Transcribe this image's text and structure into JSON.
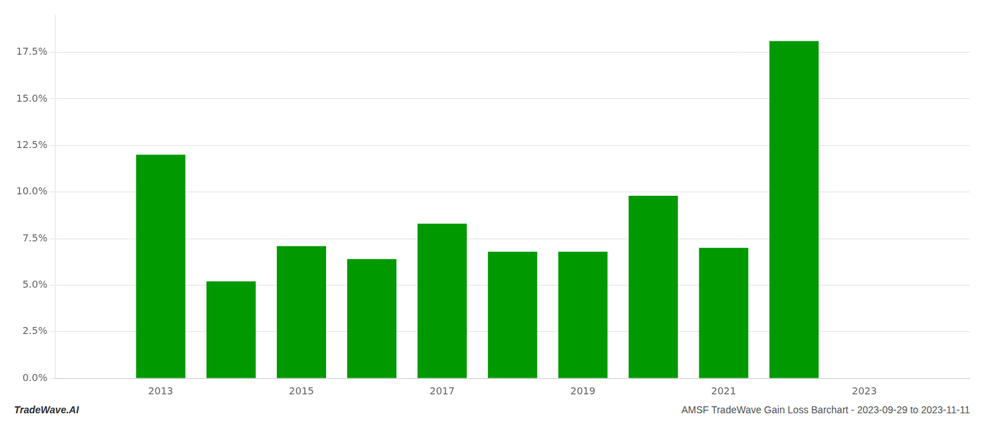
{
  "chart_data": {
    "type": "bar",
    "x": [
      2013,
      2014,
      2015,
      2016,
      2017,
      2018,
      2019,
      2020,
      2021,
      2022
    ],
    "values": [
      0.12,
      0.052,
      0.071,
      0.064,
      0.083,
      0.068,
      0.068,
      0.098,
      0.07,
      0.181
    ],
    "color": "#009900",
    "xlim": [
      2011.5,
      2024.5
    ],
    "xticks": [
      2013,
      2015,
      2017,
      2019,
      2021,
      2023
    ],
    "ylim": [
      0,
      0.195
    ],
    "yticks": [
      {
        "value": 0.0,
        "label": "0.0%"
      },
      {
        "value": 0.025,
        "label": "2.5%"
      },
      {
        "value": 0.05,
        "label": "5.0%"
      },
      {
        "value": 0.075,
        "label": "7.5%"
      },
      {
        "value": 0.1,
        "label": "10.0%"
      },
      {
        "value": 0.125,
        "label": "12.5%"
      },
      {
        "value": 0.15,
        "label": "15.0%"
      },
      {
        "value": 0.175,
        "label": "17.5%"
      }
    ],
    "grid": true,
    "annotations": [
      "TradeWave.AI",
      "AMSF TradeWave Gain Loss Barchart - 2023-09-29 to 2023-11-11"
    ]
  }
}
